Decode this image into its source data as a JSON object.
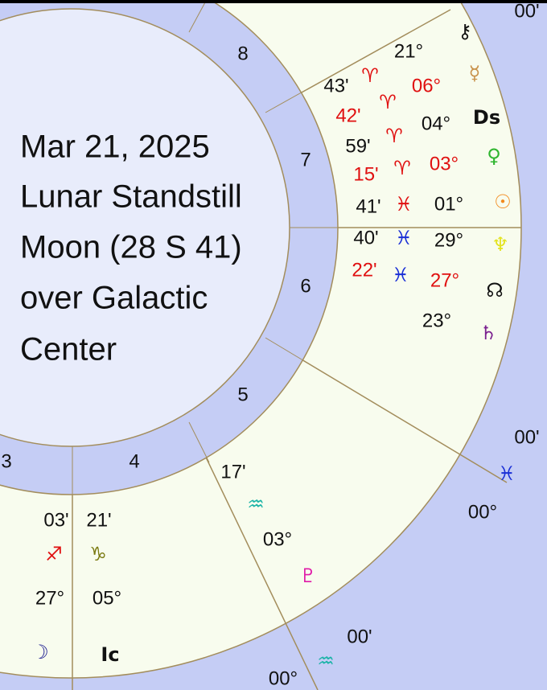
{
  "caption": [
    "Mar 21, 2025",
    "Lunar Standstill",
    "Moon (28 S 41)",
    "over Galactic",
    "Center"
  ],
  "houses": [
    "8",
    "7",
    "6",
    "5",
    "4",
    "3"
  ],
  "cusps": [
    {
      "minutes": "00'"
    },
    {
      "minutes": "00'",
      "sign": "♓",
      "degree": "00°"
    },
    {
      "minutes": "00'",
      "sign": "♒",
      "degree": "00°"
    }
  ],
  "points": [
    {
      "glyph": "⚷",
      "degree": "21°"
    },
    {
      "glyph": "☿",
      "minutes": "43'",
      "sign": "♈",
      "degree": "06°"
    },
    {
      "glyph": "Ds",
      "minutes": "42'",
      "sign": "♈",
      "degree": "04°"
    },
    {
      "glyph": "♀",
      "minutes": "59'",
      "sign": "♈",
      "degree": "03°"
    },
    {
      "glyph": "☉",
      "minutes": "15'",
      "sign": "♈",
      "degree": "01°"
    },
    {
      "glyph": "♆",
      "minutes": "41'",
      "sign": "♓",
      "degree": "29°"
    },
    {
      "glyph": "☊",
      "minutes": "40'",
      "sign": "♓",
      "degree": "27°"
    },
    {
      "glyph": "♄",
      "minutes": "22'",
      "sign": "♓",
      "degree": "23°"
    },
    {
      "glyph": "♇",
      "minutes": "17'",
      "sign": "♒",
      "degree": "03°"
    },
    {
      "glyph": "☽",
      "minutes": "03'",
      "sign": "♐",
      "degree": "27°"
    },
    {
      "glyph": "Ic",
      "minutes": "21'",
      "sign": "♑",
      "degree": "05°"
    }
  ]
}
